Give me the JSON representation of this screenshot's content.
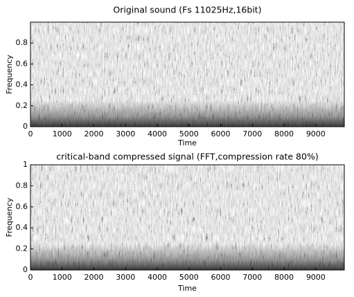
{
  "chart_data": [
    {
      "type": "heatmap",
      "title": "Original sound (Fs 11025Hz,16bit)",
      "xlabel": "Time",
      "ylabel": "Frequency",
      "xlim": [
        0,
        9900
      ],
      "xticks": [
        0,
        1000,
        2000,
        3000,
        4000,
        5000,
        6000,
        7000,
        8000,
        9000
      ],
      "ylim": [
        0,
        1
      ],
      "yticks": [
        0,
        0.2,
        0.4,
        0.6,
        0.8
      ]
    },
    {
      "type": "heatmap",
      "title": "critical-band compressed signal (FFT,compression rate 80%)",
      "xlabel": "Time",
      "ylabel": "Frequency",
      "xlim": [
        0,
        9900
      ],
      "xticks": [
        0,
        1000,
        2000,
        3000,
        4000,
        5000,
        6000,
        7000,
        8000,
        9000
      ],
      "ylim": [
        0,
        1
      ],
      "yticks": [
        0,
        0.2,
        0.4,
        0.6,
        0.8,
        1
      ]
    }
  ]
}
